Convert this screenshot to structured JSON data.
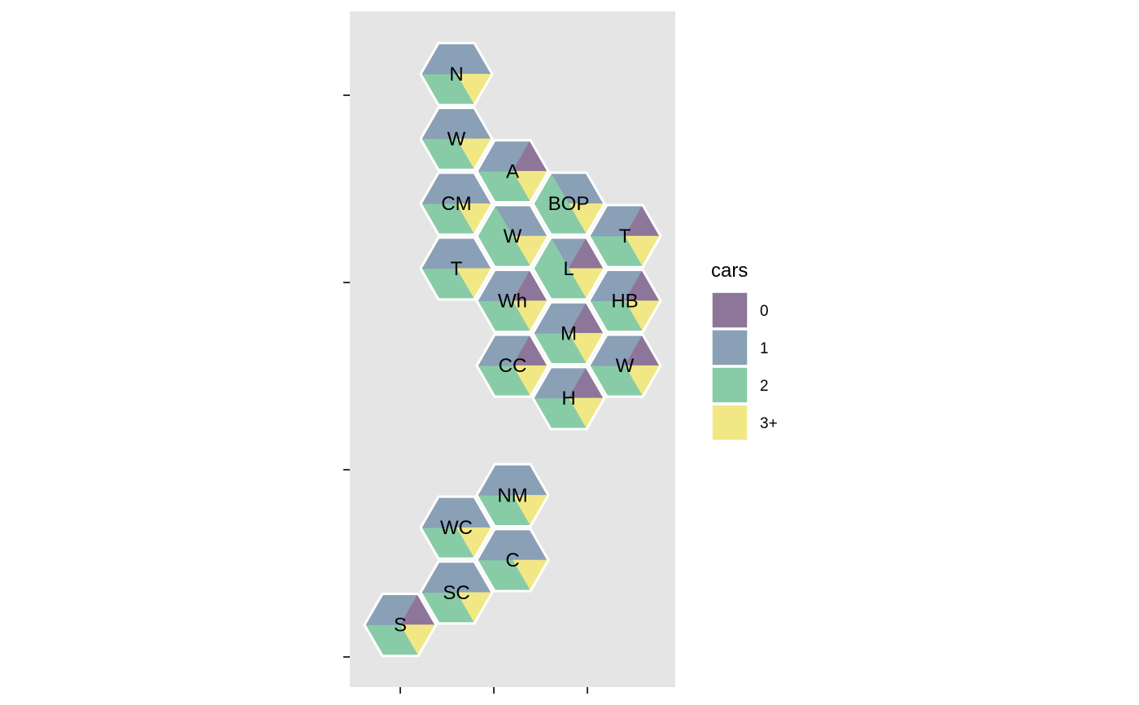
{
  "chart_data": {
    "type": "hexagon-tile-map",
    "title": "",
    "xlabel": "",
    "ylabel": "",
    "legend": {
      "title": "cars",
      "placement": "right",
      "categories": [
        {
          "label": "0",
          "color": "#8e769a"
        },
        {
          "label": "1",
          "color": "#8aa0b6"
        },
        {
          "label": "2",
          "color": "#88cca7"
        },
        {
          "label": "3+",
          "color": "#f1e885"
        }
      ]
    },
    "panel_background": "#e5e5e5",
    "grid": false,
    "tiles": [
      {
        "label": "N",
        "col": 0,
        "row": 0,
        "segments": [
          "1",
          "1",
          "3+",
          "2",
          "2",
          "1"
        ]
      },
      {
        "label": "W",
        "col": 0,
        "row": 2,
        "segments": [
          "1",
          "1",
          "3+",
          "2",
          "2",
          "1"
        ]
      },
      {
        "label": "A",
        "col": 1,
        "row": 3,
        "segments": [
          "1",
          "0",
          "3+",
          "2",
          "2",
          "1"
        ]
      },
      {
        "label": "CM",
        "col": 0,
        "row": 4,
        "segments": [
          "1",
          "1",
          "3+",
          "2",
          "2",
          "1"
        ]
      },
      {
        "label": "BOP",
        "col": 2,
        "row": 4,
        "segments": [
          "1",
          "1",
          "3+",
          "2",
          "2",
          "2"
        ]
      },
      {
        "label": "W",
        "col": 1,
        "row": 5,
        "segments": [
          "1",
          "1",
          "3+",
          "2",
          "2",
          "2"
        ]
      },
      {
        "label": "T",
        "col": 3,
        "row": 5,
        "segments": [
          "1",
          "0",
          "3+",
          "2",
          "2",
          "1"
        ]
      },
      {
        "label": "T",
        "col": 0,
        "row": 6,
        "segments": [
          "1",
          "1",
          "3+",
          "2",
          "2",
          "1"
        ]
      },
      {
        "label": "L",
        "col": 2,
        "row": 6,
        "segments": [
          "1",
          "0",
          "3+",
          "2",
          "2",
          "2"
        ]
      },
      {
        "label": "Wh",
        "col": 1,
        "row": 7,
        "segments": [
          "1",
          "0",
          "3+",
          "2",
          "2",
          "1"
        ]
      },
      {
        "label": "HB",
        "col": 3,
        "row": 7,
        "segments": [
          "1",
          "0",
          "3+",
          "2",
          "2",
          "1"
        ]
      },
      {
        "label": "M",
        "col": 2,
        "row": 8,
        "segments": [
          "1",
          "0",
          "3+",
          "2",
          "2",
          "1"
        ]
      },
      {
        "label": "CC",
        "col": 1,
        "row": 9,
        "segments": [
          "1",
          "0",
          "3+",
          "2",
          "2",
          "1"
        ]
      },
      {
        "label": "W",
        "col": 3,
        "row": 9,
        "segments": [
          "1",
          "0",
          "3+",
          "2",
          "2",
          "1"
        ]
      },
      {
        "label": "H",
        "col": 2,
        "row": 10,
        "segments": [
          "1",
          "0",
          "3+",
          "2",
          "2",
          "1"
        ]
      },
      {
        "label": "NM",
        "col": 1,
        "row": 13,
        "segments": [
          "1",
          "1",
          "3+",
          "2",
          "2",
          "1"
        ]
      },
      {
        "label": "WC",
        "col": 0,
        "row": 14,
        "segments": [
          "1",
          "1",
          "3+",
          "2",
          "2",
          "1"
        ]
      },
      {
        "label": "C",
        "col": 1,
        "row": 15,
        "segments": [
          "1",
          "1",
          "3+",
          "2",
          "2",
          "1"
        ]
      },
      {
        "label": "SC",
        "col": 0,
        "row": 16,
        "segments": [
          "1",
          "1",
          "3+",
          "2",
          "2",
          "1"
        ]
      },
      {
        "label": "S",
        "col": -1,
        "row": 17,
        "segments": [
          "1",
          "0",
          "3+",
          "2",
          "2",
          "1"
        ]
      }
    ],
    "x_ticks": 3,
    "y_ticks": 4
  }
}
